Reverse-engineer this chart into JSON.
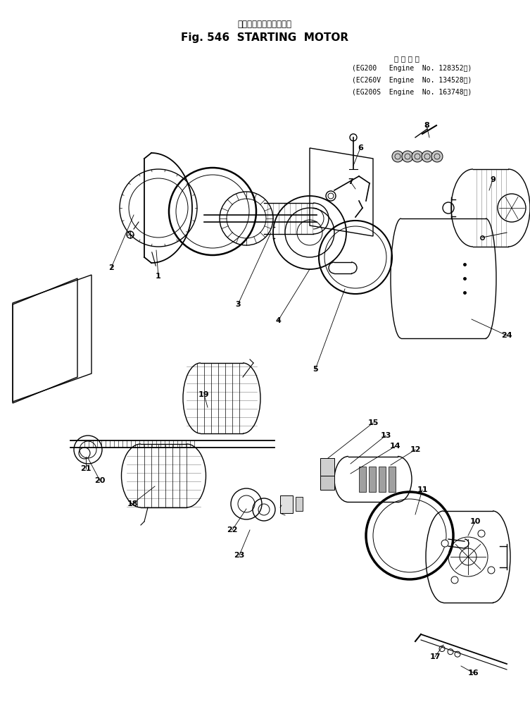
{
  "title_japanese": "スターティング　モータ",
  "title_english": "Fig. 546  STARTING  MOTOR",
  "background_color": "#ffffff",
  "text_color": "#000000",
  "specs_header": "適 用 号 機",
  "specs": [
    "(EG200   Engine  No. 128352～)",
    "(EC260V  Engine  No. 134528～)",
    "(EG200S  Engine  No. 163748～)"
  ],
  "fig_width": 7.53,
  "fig_height": 10.06,
  "dpi": 100
}
